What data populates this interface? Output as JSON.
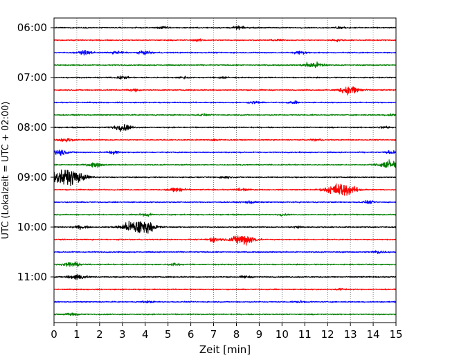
{
  "chart_data": {
    "type": "line",
    "title": "",
    "xlabel": "Zeit  [min]",
    "ylabel": "UTC (Lokalzeit = UTC + 02:00)",
    "xlim": [
      0,
      15
    ],
    "x_ticks": [
      "0",
      "1",
      "2",
      "3",
      "4",
      "5",
      "6",
      "7",
      "8",
      "9",
      "10",
      "11",
      "12",
      "13",
      "14",
      "15"
    ],
    "y_ticks": [
      "06:00",
      "07:00",
      "08:00",
      "09:00",
      "10:00",
      "11:00"
    ],
    "grid": "vertical dotted",
    "trace_interval_min": 15,
    "start_time": "06:00",
    "trace_colors": [
      "#000000",
      "#ff0000",
      "#0000ff",
      "#008000"
    ],
    "traces": [
      {
        "time": "06:00",
        "color": "#000000",
        "events": [
          {
            "t": 4.8,
            "amp": 0.4
          },
          {
            "t": 8.1,
            "amp": 0.5
          },
          {
            "t": 12.5,
            "amp": 0.4
          }
        ]
      },
      {
        "time": "06:15",
        "color": "#ff0000",
        "events": [
          {
            "t": 6.3,
            "amp": 0.35
          },
          {
            "t": 9.8,
            "amp": 0.3
          },
          {
            "t": 12.4,
            "amp": 0.35
          }
        ]
      },
      {
        "time": "06:30",
        "color": "#0000ff",
        "events": [
          {
            "t": 1.4,
            "amp": 0.7
          },
          {
            "t": 2.8,
            "amp": 0.5
          },
          {
            "t": 4.0,
            "amp": 0.6
          },
          {
            "t": 10.8,
            "amp": 0.6
          }
        ]
      },
      {
        "time": "06:45",
        "color": "#008000",
        "events": [
          {
            "t": 11.3,
            "amp": 1.0
          },
          {
            "t": 11.7,
            "amp": 0.5
          }
        ]
      },
      {
        "time": "07:00",
        "color": "#000000",
        "events": [
          {
            "t": 3.0,
            "amp": 0.5
          },
          {
            "t": 5.7,
            "amp": 0.4
          },
          {
            "t": 7.4,
            "amp": 0.35
          }
        ]
      },
      {
        "time": "07:15",
        "color": "#ff0000",
        "events": [
          {
            "t": 3.5,
            "amp": 0.45
          },
          {
            "t": 13.0,
            "amp": 1.6
          }
        ]
      },
      {
        "time": "07:30",
        "color": "#0000ff",
        "events": [
          {
            "t": 8.8,
            "amp": 0.4
          },
          {
            "t": 10.5,
            "amp": 0.35
          }
        ]
      },
      {
        "time": "07:45",
        "color": "#008000",
        "events": [
          {
            "t": 6.5,
            "amp": 0.3
          },
          {
            "t": 14.8,
            "amp": 0.35
          }
        ]
      },
      {
        "time": "08:00",
        "color": "#000000",
        "events": [
          {
            "t": 3.0,
            "amp": 1.2
          },
          {
            "t": 14.5,
            "amp": 0.4
          }
        ]
      },
      {
        "time": "08:15",
        "color": "#ff0000",
        "events": [
          {
            "t": 0.5,
            "amp": 0.7
          },
          {
            "t": 7.1,
            "amp": 0.35
          },
          {
            "t": 11.5,
            "amp": 0.35
          }
        ]
      },
      {
        "time": "08:30",
        "color": "#0000ff",
        "events": [
          {
            "t": 0.2,
            "amp": 1.2
          },
          {
            "t": 2.6,
            "amp": 0.6
          },
          {
            "t": 14.8,
            "amp": 0.5
          }
        ]
      },
      {
        "time": "08:45",
        "color": "#008000",
        "events": [
          {
            "t": 1.8,
            "amp": 0.8
          },
          {
            "t": 14.8,
            "amp": 1.8
          }
        ]
      },
      {
        "time": "09:00",
        "color": "#000000",
        "events": [
          {
            "t": 0.6,
            "amp": 3.0
          },
          {
            "t": 7.5,
            "amp": 0.4
          }
        ]
      },
      {
        "time": "09:15",
        "color": "#ff0000",
        "events": [
          {
            "t": 5.4,
            "amp": 1.0
          },
          {
            "t": 8.2,
            "amp": 0.6
          },
          {
            "t": 12.6,
            "amp": 2.5
          }
        ]
      },
      {
        "time": "09:30",
        "color": "#0000ff",
        "events": [
          {
            "t": 8.6,
            "amp": 0.5
          },
          {
            "t": 13.8,
            "amp": 0.45
          }
        ]
      },
      {
        "time": "09:45",
        "color": "#008000",
        "events": [
          {
            "t": 4.0,
            "amp": 0.5
          },
          {
            "t": 10.0,
            "amp": 0.3
          }
        ]
      },
      {
        "time": "10:00",
        "color": "#000000",
        "events": [
          {
            "t": 1.2,
            "amp": 0.6
          },
          {
            "t": 3.7,
            "amp": 2.8
          },
          {
            "t": 10.7,
            "amp": 0.4
          }
        ]
      },
      {
        "time": "10:15",
        "color": "#ff0000",
        "events": [
          {
            "t": 7.0,
            "amp": 0.8
          },
          {
            "t": 8.3,
            "amp": 2.0
          }
        ]
      },
      {
        "time": "10:30",
        "color": "#0000ff",
        "events": [
          {
            "t": 14.2,
            "amp": 0.6
          }
        ]
      },
      {
        "time": "10:45",
        "color": "#008000",
        "events": [
          {
            "t": 0.8,
            "amp": 0.9
          },
          {
            "t": 5.3,
            "amp": 0.5
          }
        ]
      },
      {
        "time": "11:00",
        "color": "#000000",
        "events": [
          {
            "t": 1.0,
            "amp": 1.1
          },
          {
            "t": 8.4,
            "amp": 0.4
          }
        ]
      },
      {
        "time": "11:15",
        "color": "#ff0000",
        "events": [
          {
            "t": 12.6,
            "amp": 0.3
          }
        ]
      },
      {
        "time": "11:30",
        "color": "#0000ff",
        "events": [
          {
            "t": 4.1,
            "amp": 0.35
          },
          {
            "t": 10.8,
            "amp": 0.35
          }
        ]
      },
      {
        "time": "11:45",
        "color": "#008000",
        "events": [
          {
            "t": 0.8,
            "amp": 0.5
          }
        ]
      }
    ]
  }
}
